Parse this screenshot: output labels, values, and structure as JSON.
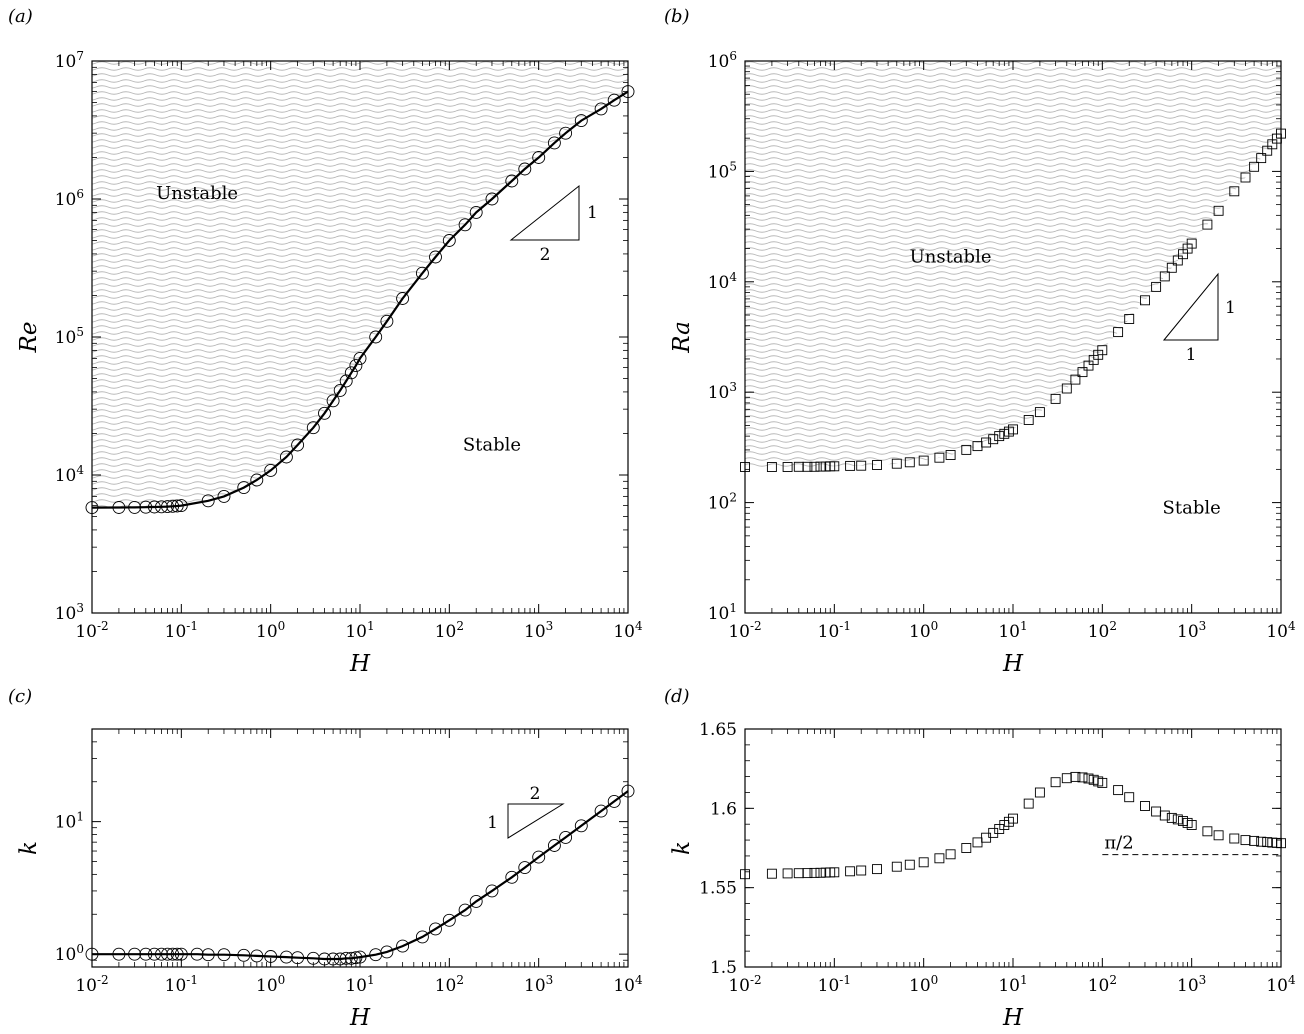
{
  "chart_data": [
    {
      "panel": "(a)",
      "type": "scatter",
      "xscale": "log",
      "yscale": "log",
      "xlim": [
        0.01,
        10000
      ],
      "ylim": [
        1000,
        10000000
      ],
      "xlabel": "H",
      "ylabel": "Re",
      "xticks": [
        "10-2",
        "10-1",
        "100",
        "101",
        "102",
        "103",
        "104"
      ],
      "yticks": [
        "103",
        "104",
        "105",
        "106",
        "107"
      ],
      "regions": [
        {
          "label": "Unstable",
          "x": 0.15,
          "y": 1000000
        },
        {
          "label": "Stable",
          "x": 300,
          "y": 15000
        }
      ],
      "slope": {
        "horizontal": "2",
        "vertical": "1"
      },
      "series": [
        {
          "marker": "circle",
          "line": true,
          "x": [
            0.01,
            0.02,
            0.03,
            0.04,
            0.05,
            0.06,
            0.07,
            0.08,
            0.09,
            0.1,
            0.2,
            0.3,
            0.5,
            0.7,
            1,
            1.5,
            2,
            3,
            4,
            5,
            6,
            7,
            8,
            9,
            10,
            15,
            20,
            30,
            50,
            70,
            100,
            150,
            200,
            300,
            500,
            700,
            1000,
            1500,
            2000,
            3000,
            5000,
            7000,
            10000
          ],
          "y": [
            5800,
            5810,
            5820,
            5840,
            5860,
            5880,
            5900,
            5930,
            5960,
            6000,
            6500,
            7000,
            8100,
            9200,
            10800,
            13500,
            16500,
            22000,
            28000,
            34500,
            41000,
            48000,
            55000,
            62000,
            70000,
            100000,
            130000,
            190000,
            290000,
            380000,
            500000,
            650000,
            800000,
            1000000,
            1350000,
            1650000,
            2000000,
            2550000,
            3000000,
            3700000,
            4500000,
            5200000,
            6000000
          ]
        }
      ]
    },
    {
      "panel": "(b)",
      "type": "scatter",
      "xscale": "log",
      "yscale": "log",
      "xlim": [
        0.01,
        10000
      ],
      "ylim": [
        10,
        1000000
      ],
      "xlabel": "H",
      "ylabel": "Ra",
      "xticks": [
        "10-2",
        "10-1",
        "100",
        "101",
        "102",
        "103",
        "104"
      ],
      "yticks": [
        "101",
        "102",
        "103",
        "104",
        "105",
        "106"
      ],
      "regions": [
        {
          "label": "Unstable",
          "x": 2,
          "y": 15000
        },
        {
          "label": "Stable",
          "x": 1000,
          "y": 80
        }
      ],
      "slope": {
        "horizontal": "1",
        "vertical": "1"
      },
      "series": [
        {
          "marker": "square",
          "line": false,
          "x": [
            0.01,
            0.02,
            0.03,
            0.04,
            0.05,
            0.06,
            0.07,
            0.08,
            0.09,
            0.1,
            0.15,
            0.2,
            0.3,
            0.5,
            0.7,
            1,
            1.5,
            2,
            3,
            4,
            5,
            6,
            7,
            8,
            9,
            10,
            15,
            20,
            30,
            40,
            50,
            60,
            70,
            80,
            90,
            100,
            150,
            200,
            300,
            400,
            500,
            600,
            700,
            800,
            900,
            1000,
            1500,
            2000,
            3000,
            4000,
            5000,
            6000,
            7000,
            8000,
            9000,
            10000
          ],
          "y": [
            210,
            210,
            210,
            211,
            211,
            211,
            212,
            212,
            213,
            213,
            215,
            216,
            219,
            225,
            232,
            240,
            255,
            270,
            300,
            325,
            350,
            375,
            400,
            420,
            440,
            460,
            560,
            660,
            870,
            1080,
            1300,
            1520,
            1740,
            1960,
            2180,
            2400,
            3500,
            4600,
            6800,
            9000,
            11200,
            13400,
            15600,
            17800,
            20000,
            22200,
            33000,
            44000,
            66000,
            88000,
            110000,
            132000,
            154000,
            176000,
            198000,
            220000
          ]
        }
      ]
    },
    {
      "panel": "(c)",
      "type": "scatter",
      "xscale": "log",
      "yscale": "log",
      "xlim": [
        0.01,
        10000
      ],
      "ylim": [
        0.8,
        50
      ],
      "xlabel": "H",
      "ylabel": "k",
      "xticks": [
        "10-2",
        "10-1",
        "100",
        "101",
        "102",
        "103",
        "104"
      ],
      "yticks": [
        "100",
        "101"
      ],
      "slope": {
        "horizontal": "2",
        "vertical": "1"
      },
      "series": [
        {
          "marker": "circle",
          "line": true,
          "x": [
            0.01,
            0.02,
            0.03,
            0.04,
            0.05,
            0.06,
            0.07,
            0.08,
            0.09,
            0.1,
            0.15,
            0.2,
            0.3,
            0.5,
            0.7,
            1,
            1.5,
            2,
            3,
            4,
            5,
            6,
            7,
            8,
            9,
            10,
            15,
            20,
            30,
            50,
            70,
            100,
            150,
            200,
            300,
            500,
            700,
            1000,
            1500,
            2000,
            3000,
            5000,
            7000,
            10000
          ],
          "y": [
            1.0,
            1.0,
            1.0,
            1.0,
            1.0,
            1.0,
            1.0,
            1.0,
            1.0,
            1.0,
            1.0,
            0.99,
            0.99,
            0.98,
            0.97,
            0.96,
            0.95,
            0.94,
            0.93,
            0.92,
            0.92,
            0.92,
            0.93,
            0.93,
            0.94,
            0.95,
            0.99,
            1.04,
            1.15,
            1.35,
            1.55,
            1.8,
            2.15,
            2.5,
            3.0,
            3.8,
            4.5,
            5.4,
            6.6,
            7.6,
            9.3,
            12.0,
            14.2,
            17.0
          ]
        }
      ]
    },
    {
      "panel": "(d)",
      "type": "scatter",
      "xscale": "log",
      "yscale": "linear",
      "xlim": [
        0.01,
        10000
      ],
      "ylim": [
        1.5,
        1.65
      ],
      "xlabel": "H",
      "ylabel": "k",
      "xticks": [
        "10-2",
        "10-1",
        "100",
        "101",
        "102",
        "103",
        "104"
      ],
      "yticks": [
        "1.5",
        "1.55",
        "1.6",
        "1.65"
      ],
      "reference": {
        "label": "π/2",
        "y": 1.5708,
        "x_from": 100,
        "x_to": 10000,
        "style": "dashed"
      },
      "series": [
        {
          "marker": "square",
          "line": false,
          "x": [
            0.01,
            0.02,
            0.03,
            0.04,
            0.05,
            0.06,
            0.07,
            0.08,
            0.09,
            0.1,
            0.15,
            0.2,
            0.3,
            0.5,
            0.7,
            1,
            1.5,
            2,
            3,
            4,
            5,
            6,
            7,
            8,
            9,
            10,
            15,
            20,
            30,
            40,
            50,
            60,
            70,
            80,
            90,
            100,
            150,
            200,
            300,
            400,
            500,
            600,
            700,
            800,
            900,
            1000,
            1500,
            2000,
            3000,
            4000,
            5000,
            6000,
            7000,
            8000,
            9000,
            10000
          ],
          "y": [
            1.5585,
            1.5588,
            1.559,
            1.5591,
            1.5592,
            1.5593,
            1.5594,
            1.5595,
            1.5596,
            1.5597,
            1.5603,
            1.5608,
            1.5617,
            1.5632,
            1.5645,
            1.566,
            1.5685,
            1.571,
            1.575,
            1.5785,
            1.5815,
            1.5845,
            1.587,
            1.5895,
            1.5915,
            1.5935,
            1.603,
            1.61,
            1.6165,
            1.619,
            1.6198,
            1.6195,
            1.6188,
            1.618,
            1.617,
            1.616,
            1.6115,
            1.607,
            1.6015,
            1.598,
            1.5955,
            1.594,
            1.593,
            1.592,
            1.5908,
            1.5895,
            1.5855,
            1.583,
            1.581,
            1.58,
            1.5795,
            1.579,
            1.5787,
            1.5784,
            1.5782,
            1.578
          ]
        }
      ]
    }
  ]
}
